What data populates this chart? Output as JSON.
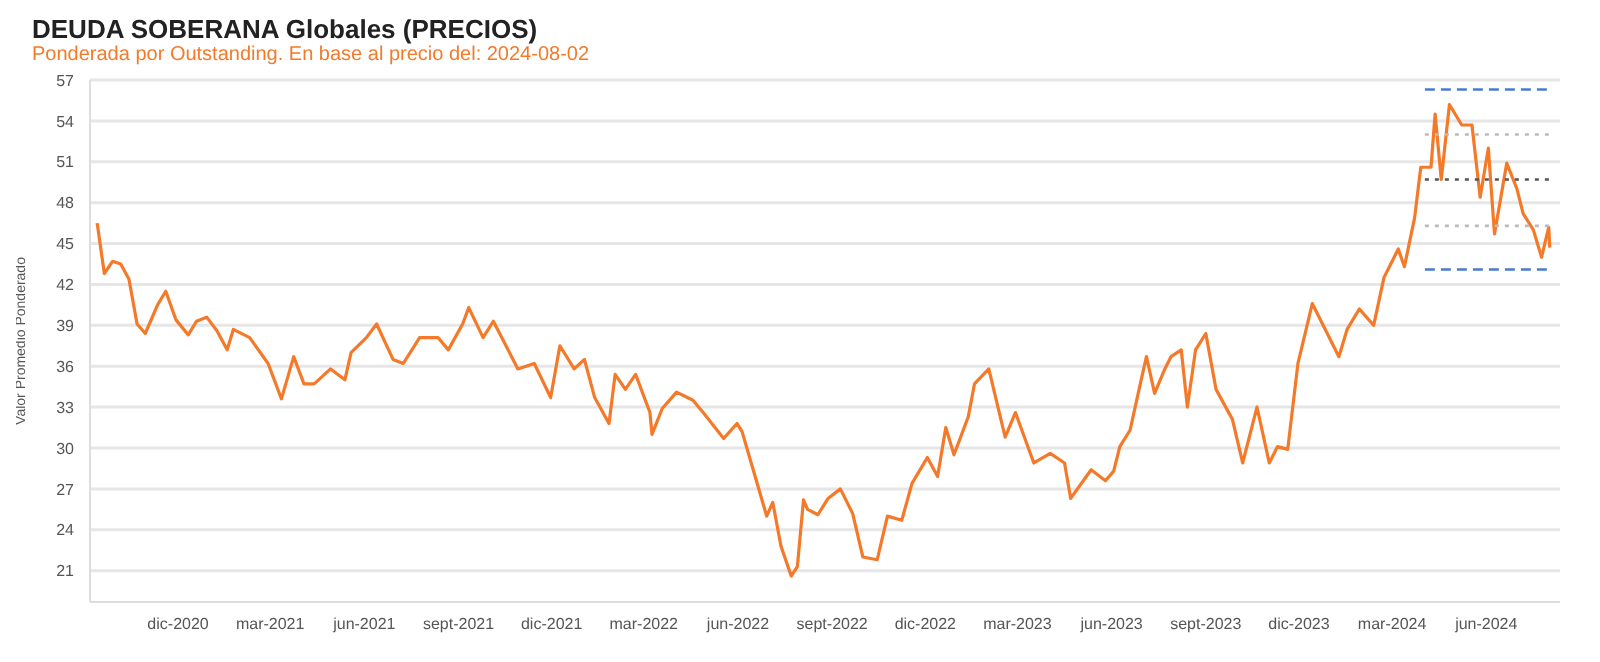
{
  "chart_data": {
    "type": "line",
    "title": "DEUDA SOBERANA Globales (PRECIOS)",
    "subtitle": "Ponderada por Outstanding. En base al precio del: 2024-08-02",
    "ylabel": "Valor Promedio Ponderado",
    "xlim": [
      "2020-09-06",
      "2024-08-12"
    ],
    "xticks": [
      {
        "value": "2020-12-01",
        "label": "dic-2020"
      },
      {
        "value": "2021-03-01",
        "label": "mar-2021"
      },
      {
        "value": "2021-06-01",
        "label": "jun-2021"
      },
      {
        "value": "2021-09-01",
        "label": "sept-2021"
      },
      {
        "value": "2021-12-01",
        "label": "dic-2021"
      },
      {
        "value": "2022-03-01",
        "label": "mar-2022"
      },
      {
        "value": "2022-06-01",
        "label": "jun-2022"
      },
      {
        "value": "2022-09-01",
        "label": "sept-2022"
      },
      {
        "value": "2022-12-01",
        "label": "dic-2022"
      },
      {
        "value": "2023-03-01",
        "label": "mar-2023"
      },
      {
        "value": "2023-06-01",
        "label": "jun-2023"
      },
      {
        "value": "2023-09-01",
        "label": "sept-2023"
      },
      {
        "value": "2023-12-01",
        "label": "dic-2023"
      },
      {
        "value": "2024-03-01",
        "label": "mar-2024"
      },
      {
        "value": "2024-06-01",
        "label": "jun-2024"
      }
    ],
    "ylim": [
      18.7,
      57
    ],
    "yticks": [
      21,
      24,
      27,
      30,
      33,
      36,
      39,
      42,
      45,
      48,
      51,
      54,
      57
    ],
    "grid": "y",
    "marker": "none",
    "series": [
      {
        "color": "#f47a2a",
        "line_style": "solid",
        "x": [
          "2020-09-13",
          "2020-09-20",
          "2020-09-28",
          "2020-10-06",
          "2020-10-14",
          "2020-10-22",
          "2020-10-30",
          "2020-11-11",
          "2020-11-19",
          "2020-11-29",
          "2020-12-11",
          "2020-12-19",
          "2020-12-29",
          "2021-01-08",
          "2021-01-18",
          "2021-01-24",
          "2021-02-09",
          "2021-02-27",
          "2021-03-12",
          "2021-03-24",
          "2021-04-03",
          "2021-04-13",
          "2021-04-29",
          "2021-05-13",
          "2021-05-19",
          "2021-06-03",
          "2021-06-13",
          "2021-06-29",
          "2021-07-09",
          "2021-07-25",
          "2021-08-12",
          "2021-08-22",
          "2021-09-05",
          "2021-09-11",
          "2021-09-25",
          "2021-10-05",
          "2021-10-29",
          "2021-11-14",
          "2021-11-30",
          "2021-12-09",
          "2021-12-23",
          "2022-01-02",
          "2022-01-12",
          "2022-01-26",
          "2022-02-01",
          "2022-02-11",
          "2022-02-21",
          "2022-03-07",
          "2022-03-09",
          "2022-03-19",
          "2022-04-02",
          "2022-04-18",
          "2022-04-28",
          "2022-05-18",
          "2022-05-31",
          "2022-06-05",
          "2022-06-19",
          "2022-06-29",
          "2022-07-05",
          "2022-07-13",
          "2022-07-23",
          "2022-07-29",
          "2022-08-04",
          "2022-08-08",
          "2022-08-18",
          "2022-08-28",
          "2022-09-09",
          "2022-09-21",
          "2022-10-01",
          "2022-10-15",
          "2022-10-25",
          "2022-11-08",
          "2022-11-18",
          "2022-12-03",
          "2022-12-13",
          "2022-12-21",
          "2022-12-29",
          "2023-01-12",
          "2023-01-18",
          "2023-02-01",
          "2023-02-17",
          "2023-02-27",
          "2023-03-17",
          "2023-04-02",
          "2023-04-16",
          "2023-04-22",
          "2023-05-12",
          "2023-05-26",
          "2023-06-03",
          "2023-06-09",
          "2023-06-19",
          "2023-06-29",
          "2023-07-05",
          "2023-07-13",
          "2023-07-23",
          "2023-07-29",
          "2023-08-08",
          "2023-08-14",
          "2023-08-22",
          "2023-09-01",
          "2023-09-11",
          "2023-09-27",
          "2023-10-07",
          "2023-10-21",
          "2023-11-02",
          "2023-11-10",
          "2023-11-20",
          "2023-11-30",
          "2023-12-08",
          "2023-12-14",
          "2024-01-09",
          "2024-01-17",
          "2024-01-29",
          "2024-02-12",
          "2024-02-22",
          "2024-03-07",
          "2024-03-13",
          "2024-03-23",
          "2024-03-29",
          "2024-04-08",
          "2024-04-12",
          "2024-04-18",
          "2024-04-26",
          "2024-05-08",
          "2024-05-18",
          "2024-05-26",
          "2024-06-03",
          "2024-06-09",
          "2024-06-21",
          "2024-07-01",
          "2024-07-07",
          "2024-07-17",
          "2024-07-25",
          "2024-08-01",
          "2024-08-02"
        ],
        "values": [
          46.5,
          42.8,
          43.7,
          43.5,
          42.4,
          39.1,
          38.4,
          40.5,
          41.5,
          39.4,
          38.3,
          39.3,
          39.6,
          38.6,
          37.2,
          38.7,
          38.1,
          36.2,
          33.6,
          36.7,
          34.7,
          34.7,
          35.8,
          35.0,
          37.0,
          38.1,
          39.1,
          36.5,
          36.2,
          38.1,
          38.1,
          37.2,
          39.1,
          40.3,
          38.1,
          39.3,
          35.8,
          36.2,
          33.7,
          37.5,
          35.8,
          36.5,
          33.7,
          31.8,
          35.4,
          34.3,
          35.4,
          32.6,
          31.0,
          32.9,
          34.1,
          33.5,
          32.6,
          30.7,
          31.8,
          31.2,
          27.6,
          25.0,
          26.0,
          22.8,
          20.6,
          21.3,
          26.2,
          25.5,
          25.1,
          26.3,
          27.0,
          25.2,
          22.0,
          21.8,
          25.0,
          24.7,
          27.4,
          29.3,
          27.9,
          31.5,
          29.5,
          32.3,
          34.7,
          35.8,
          30.8,
          32.6,
          28.9,
          29.6,
          28.9,
          26.3,
          28.4,
          27.6,
          28.3,
          30.1,
          31.3,
          34.7,
          36.7,
          34.0,
          35.8,
          36.7,
          37.2,
          33.0,
          37.2,
          38.4,
          34.3,
          32.1,
          28.9,
          33.0,
          28.9,
          30.1,
          29.9,
          36.2,
          38.7,
          40.6,
          36.7,
          38.7,
          40.2,
          39.0,
          42.5,
          44.6,
          43.3,
          46.9,
          50.6,
          50.6,
          54.5,
          49.7,
          55.2,
          53.7,
          53.7,
          48.4,
          52.0,
          45.7,
          50.9,
          49.0,
          47.2,
          46.0,
          44.0,
          46.2,
          44.7
        ]
      },
      {
        "color": "#4a7bd0",
        "line_style": "dashed",
        "x": [
          "2024-04-02",
          "2024-08-02"
        ],
        "values": [
          56.3,
          56.3
        ]
      },
      {
        "color": "#bbbbbb",
        "line_style": "dotted",
        "x": [
          "2024-04-02",
          "2024-08-02"
        ],
        "values": [
          53.0,
          53.0
        ]
      },
      {
        "color": "#555555",
        "line_style": "dotted",
        "x": [
          "2024-04-02",
          "2024-08-02"
        ],
        "values": [
          49.7,
          49.7
        ]
      },
      {
        "color": "#bbbbbb",
        "line_style": "dotted",
        "x": [
          "2024-04-02",
          "2024-08-02"
        ],
        "values": [
          46.3,
          46.3
        ]
      },
      {
        "color": "#4a7bd0",
        "line_style": "dashed",
        "x": [
          "2024-04-02",
          "2024-08-02"
        ],
        "values": [
          43.1,
          43.1
        ]
      }
    ]
  }
}
